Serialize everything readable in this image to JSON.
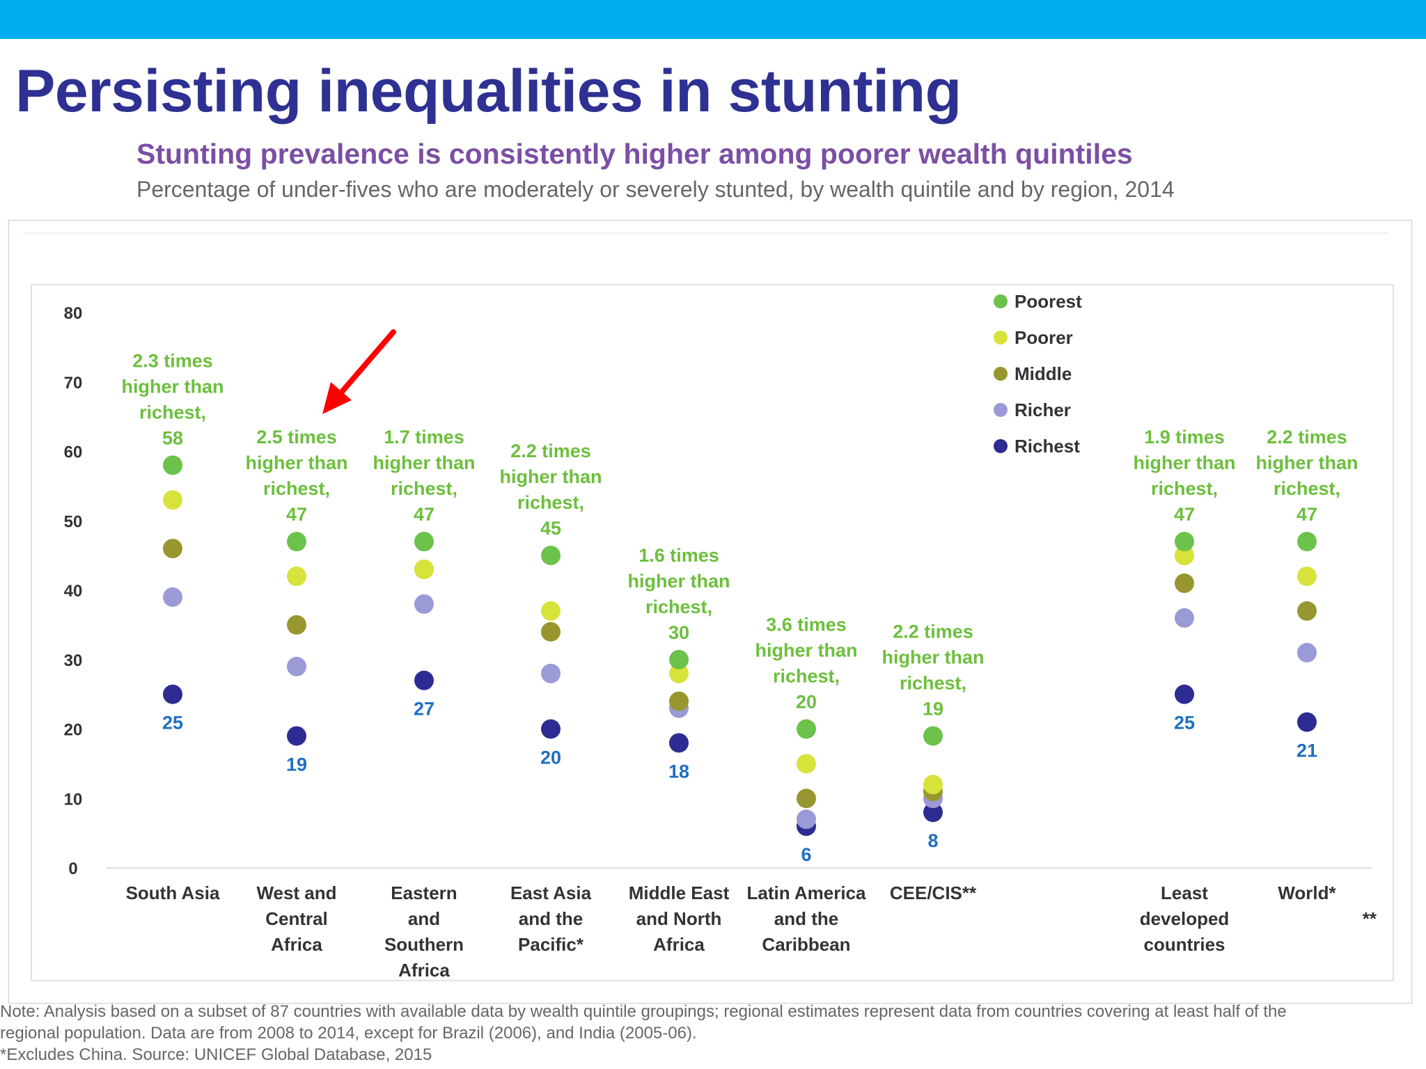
{
  "slide": {
    "title": "Persisting inequalities in stunting",
    "subtitle": "Stunting prevalence is consistently higher among poorer wealth quintiles",
    "caption": "Percentage of under-fives who are moderately or severely stunted, by wealth quintile and by region, 2014"
  },
  "notes": [
    "Note: Analysis based on a subset of 87 countries with available data by wealth quintile groupings; regional estimates represent data from countries covering at least half of the",
    "regional population. Data are from 2008 to 2014, except for Brazil (2006), and India (2005-06).",
    "*Excludes China. Source: UNICEF Global Database, 2015"
  ],
  "colors": {
    "top_bar": "#00aeef",
    "title": "#2e3192",
    "subtitle": "#7b4fa4",
    "annotation": "#6cbf3c",
    "richest_label": "#1e6fc0",
    "arrow": "#ff0000",
    "Poorest": "#6cc24a",
    "Poorer": "#d7e33a",
    "Middle": "#98962e",
    "Richer": "#9a9ad6",
    "Richest": "#2c2c92"
  },
  "chart_data": {
    "type": "scatter",
    "title": "Percentage of under-fives who are moderately or severely stunted, by wealth quintile and by region, 2014",
    "xlabel": "",
    "ylabel": "",
    "ylim": [
      0,
      80
    ],
    "yticks": [
      0,
      10,
      20,
      30,
      40,
      50,
      60,
      70,
      80
    ],
    "grid": false,
    "legend_position": "top-right",
    "legend": [
      "Poorest",
      "Poorer",
      "Middle",
      "Richer",
      "Richest"
    ],
    "categories": [
      {
        "label": [
          "South Asia"
        ],
        "values": [
          58,
          53,
          46,
          39,
          25
        ],
        "annotation": [
          "2.3 times",
          "higher than",
          "richest,",
          "58"
        ],
        "richest_label": "25"
      },
      {
        "label": [
          "West and",
          "Central",
          "Africa"
        ],
        "values": [
          47,
          42,
          35,
          29,
          19
        ],
        "annotation": [
          "2.5 times",
          "higher than",
          "richest,",
          "47"
        ],
        "richest_label": "19"
      },
      {
        "label": [
          "Eastern",
          "and",
          "Southern",
          "Africa"
        ],
        "values": [
          47,
          43,
          43,
          38,
          27
        ],
        "annotation": [
          "1.7 times",
          "higher than",
          "richest,",
          "47"
        ],
        "richest_label": "27"
      },
      {
        "label": [
          "East Asia",
          "and the",
          "Pacific*"
        ],
        "values": [
          45,
          37,
          34,
          28,
          20
        ],
        "annotation": [
          "2.2 times",
          "higher than",
          "richest,",
          "45"
        ],
        "richest_label": "20"
      },
      {
        "label": [
          "Middle East",
          "and North",
          "Africa"
        ],
        "values": [
          30,
          28,
          24,
          23,
          18
        ],
        "annotation": [
          "1.6 times",
          "higher than",
          "richest,",
          "30"
        ],
        "richest_label": "18"
      },
      {
        "label": [
          "Latin America",
          "and the",
          "Caribbean"
        ],
        "values": [
          20,
          15,
          10,
          7,
          6
        ],
        "annotation": [
          "3.6 times",
          "higher than",
          "richest,",
          "20"
        ],
        "richest_label": "6"
      },
      {
        "label": [
          "CEE/CIS**"
        ],
        "values": [
          19,
          12,
          11,
          10,
          8
        ],
        "annotation": [
          "2.2 times",
          "higher than",
          "richest,",
          "19"
        ],
        "richest_label": "8"
      },
      {
        "label": [
          "Least",
          "developed",
          "countries"
        ],
        "values": [
          47,
          45,
          41,
          36,
          25
        ],
        "annotation": [
          "1.9 times",
          "higher than",
          "richest,",
          "47"
        ],
        "richest_label": "25"
      },
      {
        "label": [
          "World*",
          "**"
        ],
        "values": [
          47,
          42,
          37,
          31,
          21
        ],
        "annotation": [
          "2.2 times",
          "higher than",
          "richest,",
          "47"
        ],
        "richest_label": "21"
      }
    ]
  }
}
